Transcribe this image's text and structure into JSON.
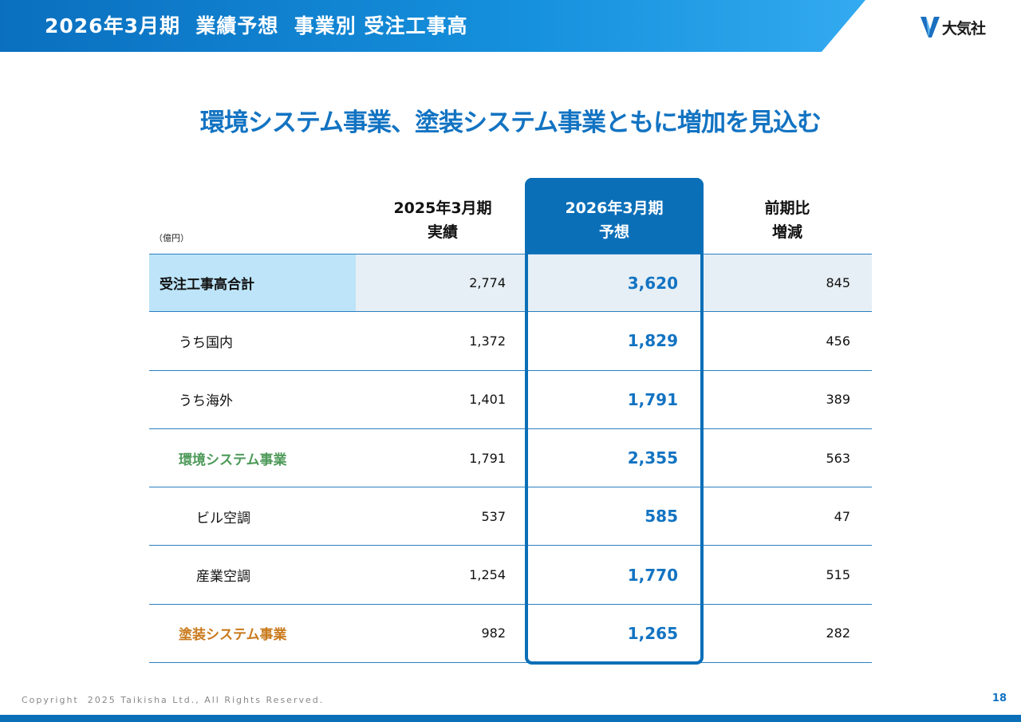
{
  "header": {
    "title": "2026年3月期  業績予想  事業別 受注工事高"
  },
  "logo": {
    "text": "大気社",
    "color": "#1a6fc0"
  },
  "headline": "環境システム事業、塗装システム事業ともに増加を見込む",
  "table": {
    "unit": "（億円）",
    "columns": {
      "prev": [
        "2025年3月期",
        "実績"
      ],
      "forecast": [
        "2026年3月期",
        "予想"
      ],
      "diff": [
        "前期比",
        "増減"
      ]
    },
    "rows": [
      {
        "label": "受注工事高合計",
        "prev": "2,774",
        "forecast": "3,620",
        "diff": "845"
      },
      {
        "label": "うち国内",
        "prev": "1,372",
        "forecast": "1,829",
        "diff": "456"
      },
      {
        "label": "うち海外",
        "prev": "1,401",
        "forecast": "1,791",
        "diff": "389"
      },
      {
        "label": "環境システム事業",
        "prev": "1,791",
        "forecast": "2,355",
        "diff": "563"
      },
      {
        "label": "ビル空調",
        "prev": "537",
        "forecast": "585",
        "diff": "47"
      },
      {
        "label": "産業空調",
        "prev": "1,254",
        "forecast": "1,770",
        "diff": "515"
      },
      {
        "label": "塗装システム事業",
        "prev": "982",
        "forecast": "1,265",
        "diff": "282"
      }
    ]
  },
  "colors": {
    "accent": "#1273c2",
    "environment": "#4e9a5a",
    "coating": "#c97a1c"
  },
  "footer": {
    "copyright": "Copyright  2025 Taikisha Ltd., All Rights Reserved.",
    "page": "18"
  }
}
